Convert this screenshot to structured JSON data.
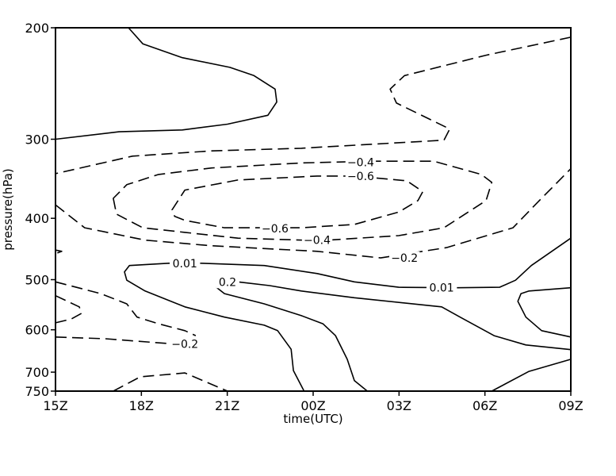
{
  "chart_data": {
    "type": "contour",
    "xlabel": "time(UTC)",
    "ylabel": "pressure(hPa)",
    "x_unit": "hour UTC",
    "x_ticks": [
      {
        "label": "15Z",
        "hour": 15
      },
      {
        "label": "18Z",
        "hour": 18
      },
      {
        "label": "21Z",
        "hour": 21
      },
      {
        "label": "00Z",
        "hour": 0
      },
      {
        "label": "03Z",
        "hour": 3
      },
      {
        "label": "06Z",
        "hour": 6
      },
      {
        "label": "09Z",
        "hour": 9
      }
    ],
    "xlim": [
      15,
      9
    ],
    "y_scale": "log",
    "y_inverted": true,
    "ylim": [
      750,
      200
    ],
    "y_ticks": [
      200,
      300,
      400,
      500,
      600,
      700,
      750
    ],
    "y_tick_labels": [
      "200",
      "300",
      "400",
      "500",
      "600",
      "700",
      "750"
    ],
    "grid": false,
    "line_color": "#000000",
    "negative_style": "dashed",
    "positive_style": "solid",
    "contours": [
      {
        "level": 0.01,
        "closed": false,
        "points": [
          [
            17.55,
            200
          ],
          [
            18.05,
            212
          ],
          [
            19.43,
            223
          ],
          [
            21.09,
            231
          ],
          [
            21.93,
            238
          ],
          [
            22.67,
            250
          ],
          [
            22.73,
            262
          ],
          [
            22.42,
            275
          ],
          [
            21.01,
            284
          ],
          [
            19.43,
            290
          ],
          [
            17.22,
            292
          ],
          [
            15,
            300
          ]
        ]
      },
      {
        "level": -0.2,
        "closed": false,
        "points": [
          [
            9,
            207
          ],
          [
            6.04,
            221
          ],
          [
            3.19,
            238
          ],
          [
            2.69,
            250
          ],
          [
            2.91,
            263
          ],
          [
            4.77,
            289
          ],
          [
            4.57,
            301
          ],
          [
            0.14,
            309
          ],
          [
            23.59,
            310
          ],
          [
            20.46,
            313
          ],
          [
            17.69,
            319
          ],
          [
            15,
            340
          ]
        ]
      },
      {
        "level": -0.4,
        "closed": true,
        "points": [
          [
            17.02,
            372
          ],
          [
            17.13,
            394
          ],
          [
            18.05,
            414
          ],
          [
            19.52,
            421
          ],
          [
            21.37,
            430
          ],
          [
            23.67,
            433
          ],
          [
            0.5,
            433
          ],
          [
            2.99,
            426
          ],
          [
            4.57,
            414
          ],
          [
            6.04,
            375
          ],
          [
            6.24,
            351
          ],
          [
            5.88,
            341
          ],
          [
            4.21,
            325
          ],
          [
            2.08,
            325
          ],
          [
            23.59,
            327
          ],
          [
            20.46,
            333
          ],
          [
            18.6,
            341
          ],
          [
            17.49,
            354
          ]
        ]
      },
      {
        "level": -0.6,
        "closed": true,
        "points": [
          [
            19.07,
            388
          ],
          [
            19.52,
            361
          ],
          [
            21.37,
            348
          ],
          [
            0.14,
            343
          ],
          [
            1.44,
            343
          ],
          [
            3.27,
            349
          ],
          [
            3.83,
            363
          ],
          [
            3.66,
            375
          ],
          [
            2.99,
            391
          ],
          [
            1.44,
            409
          ],
          [
            23.59,
            414
          ],
          [
            20.9,
            414
          ],
          [
            19.52,
            403
          ],
          [
            19.16,
            397
          ]
        ]
      },
      {
        "level": -0.2,
        "closed": false,
        "points": [
          [
            15,
            381
          ],
          [
            16.02,
            414
          ],
          [
            18.13,
            433
          ],
          [
            20.46,
            442
          ],
          [
            0.14,
            451
          ],
          [
            2.36,
            462
          ],
          [
            4.66,
            445
          ],
          [
            6.98,
            414
          ],
          [
            7.9,
            375
          ],
          [
            9,
            334
          ]
        ]
      },
      {
        "level": -0.2,
        "closed": false,
        "points": [
          [
            15,
            449
          ],
          [
            15.22,
            451
          ],
          [
            15,
            455
          ]
        ]
      },
      {
        "level": 0.01,
        "closed": false,
        "points": [
          [
            9,
            430
          ],
          [
            7.62,
            475
          ],
          [
            7.07,
            501
          ],
          [
            6.51,
            514
          ],
          [
            5.04,
            515
          ],
          [
            2.99,
            514
          ],
          [
            1.44,
            504
          ],
          [
            0.14,
            489
          ],
          [
            22.29,
            475
          ],
          [
            20.07,
            471
          ],
          [
            18.96,
            471
          ],
          [
            17.58,
            475
          ],
          [
            17.41,
            486
          ],
          [
            17.49,
            501
          ],
          [
            18.13,
            521
          ],
          [
            19.52,
            552
          ],
          [
            20.9,
            573
          ],
          [
            22.29,
            590
          ],
          [
            22.76,
            602
          ],
          [
            23.23,
            644
          ],
          [
            23.31,
            696
          ],
          [
            23.67,
            748
          ]
        ]
      },
      {
        "level": 0.2,
        "closed": false,
        "points": [
          [
            9,
            645
          ],
          [
            7.43,
            634
          ],
          [
            6.32,
            613
          ],
          [
            5.13,
            573
          ],
          [
            4.49,
            552
          ],
          [
            1.44,
            534
          ],
          [
            23.59,
            521
          ],
          [
            22.48,
            511
          ],
          [
            21.37,
            504
          ],
          [
            21.01,
            504
          ],
          [
            20.62,
            514
          ],
          [
            20.9,
            526
          ],
          [
            22.29,
            546
          ],
          [
            23.59,
            570
          ],
          [
            0.34,
            587
          ],
          [
            0.78,
            613
          ],
          [
            1.19,
            668
          ],
          [
            1.44,
            722
          ],
          [
            1.89,
            750
          ]
        ]
      },
      {
        "level": 0.2,
        "closed": false,
        "points": [
          [
            9,
            515
          ],
          [
            7.54,
            521
          ],
          [
            7.26,
            526
          ],
          [
            7.15,
            541
          ],
          [
            7.43,
            573
          ],
          [
            7.98,
            602
          ],
          [
            9,
            616
          ]
        ]
      },
      {
        "level": 0.2,
        "closed": false,
        "points": [
          [
            6.24,
            750
          ],
          [
            7.54,
            698
          ],
          [
            9,
            668
          ]
        ]
      },
      {
        "level": -0.2,
        "closed": false,
        "points": [
          [
            15,
            504
          ],
          [
            16.58,
            526
          ],
          [
            17.49,
            546
          ],
          [
            17.85,
            573
          ],
          [
            18.6,
            587
          ],
          [
            19.52,
            602
          ],
          [
            19.9,
            613
          ]
        ]
      },
      {
        "level": -0.2,
        "closed": false,
        "points": [
          [
            15,
            616
          ],
          [
            16.75,
            620
          ],
          [
            18.96,
            631
          ]
        ]
      },
      {
        "level": -0.2,
        "closed": false,
        "points": [
          [
            15,
            530
          ],
          [
            15.83,
            552
          ],
          [
            15.91,
            565
          ],
          [
            15.55,
            577
          ],
          [
            15,
            585
          ]
        ]
      },
      {
        "level": -0.2,
        "closed": false,
        "points": [
          [
            17.02,
            750
          ],
          [
            17.96,
            712
          ],
          [
            19.52,
            702
          ],
          [
            21.01,
            750
          ]
        ]
      }
    ],
    "contour_labels": [
      {
        "text": "-0.4",
        "hour": 1.66,
        "p": 326
      },
      {
        "text": "-0.6",
        "hour": 1.66,
        "p": 343
      },
      {
        "text": "-0.6",
        "hour": 22.67,
        "p": 415
      },
      {
        "text": "-0.4",
        "hour": 0.14,
        "p": 433
      },
      {
        "text": "-0.2",
        "hour": 3.19,
        "p": 462
      },
      {
        "text": "0.01",
        "hour": 19.52,
        "p": 471
      },
      {
        "text": "0.2",
        "hour": 21.01,
        "p": 504
      },
      {
        "text": "0.01",
        "hour": 4.49,
        "p": 515
      },
      {
        "text": "-0.2",
        "hour": 19.52,
        "p": 632
      }
    ]
  }
}
